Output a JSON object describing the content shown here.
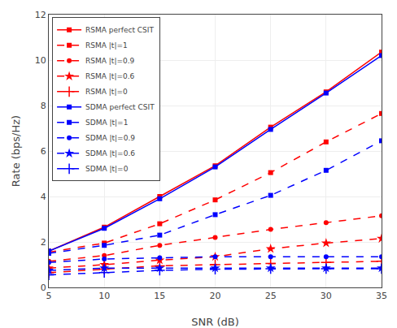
{
  "chart_data": {
    "type": "line",
    "x": [
      5,
      10,
      15,
      20,
      25,
      30,
      35
    ],
    "series": [
      {
        "name": "RSMA perfect CSIT",
        "color": "#FF0000",
        "marker": "square",
        "line_style": "solid",
        "values": [
          1.6,
          2.65,
          4.0,
          5.35,
          7.05,
          8.6,
          10.35
        ]
      },
      {
        "name": "RSMA |t|=1",
        "color": "#FF0000",
        "marker": "square",
        "line_style": "dashed",
        "values": [
          1.55,
          1.95,
          2.8,
          3.85,
          5.05,
          6.4,
          7.65
        ]
      },
      {
        "name": "RSMA |t|=0.9",
        "color": "#FF0000",
        "marker": "circle",
        "line_style": "dashed",
        "values": [
          1.15,
          1.4,
          1.85,
          2.2,
          2.55,
          2.85,
          3.15
        ]
      },
      {
        "name": "RSMA |t|=0.6",
        "color": "#FF0000",
        "marker": "star",
        "line_style": "dashed",
        "values": [
          0.85,
          1.0,
          1.2,
          1.35,
          1.7,
          1.95,
          2.15
        ]
      },
      {
        "name": "RSMA |t|=0",
        "color": "#FF0000",
        "marker": "plus",
        "line_style": "dashed",
        "values": [
          0.65,
          0.8,
          0.95,
          1.0,
          1.05,
          1.1,
          1.15
        ]
      },
      {
        "name": "SDMA perfect CSIT",
        "color": "#0000FF",
        "marker": "square",
        "line_style": "solid",
        "values": [
          1.6,
          2.6,
          3.9,
          5.3,
          6.95,
          8.55,
          10.2
        ]
      },
      {
        "name": "SDMA |t|=1",
        "color": "#0000FF",
        "marker": "square",
        "line_style": "dashed",
        "values": [
          1.5,
          1.85,
          2.3,
          3.2,
          4.05,
          5.15,
          6.45
        ]
      },
      {
        "name": "SDMA |t|=0.9",
        "color": "#0000FF",
        "marker": "circle",
        "line_style": "dashed",
        "values": [
          1.1,
          1.25,
          1.3,
          1.35,
          1.35,
          1.35,
          1.35
        ]
      },
      {
        "name": "SDMA |t|=0.6",
        "color": "#0000FF",
        "marker": "star",
        "line_style": "dashed",
        "values": [
          0.75,
          0.85,
          0.85,
          0.85,
          0.85,
          0.85,
          0.85
        ]
      },
      {
        "name": "SDMA |t|=0",
        "color": "#0000FF",
        "marker": "plus",
        "line_style": "dashed",
        "values": [
          0.55,
          0.65,
          0.75,
          0.8,
          0.82,
          0.82,
          0.82
        ]
      }
    ],
    "xlabel": "SNR (dB)",
    "ylabel": "Rate (bps/Hz)",
    "xlim": [
      5,
      35
    ],
    "ylim": [
      0,
      12
    ],
    "xticks": [
      5,
      10,
      15,
      20,
      25,
      30,
      35
    ],
    "yticks": [
      0,
      2,
      4,
      6,
      8,
      10,
      12
    ],
    "grid": true,
    "legend": "upper left"
  }
}
